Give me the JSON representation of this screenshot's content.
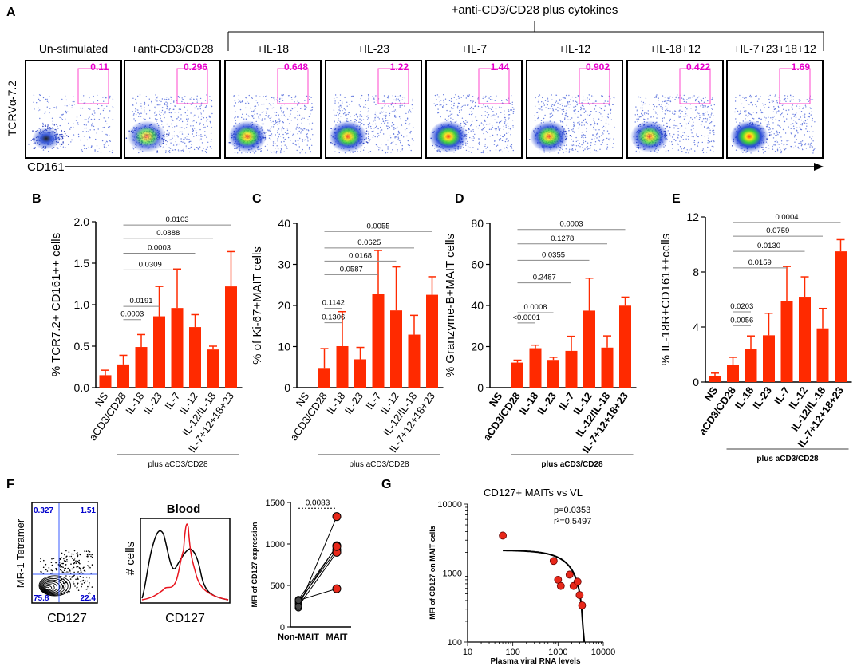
{
  "colors": {
    "bar": "#ff2a00",
    "gate": "#ff44cc",
    "gate_text": "#e600cc",
    "quad_text": "#0000cc",
    "quad_line": "#3a5bff",
    "hist_red": "#e8141e",
    "dot": "#e8281a"
  },
  "panelA": {
    "letter": "A",
    "super_label": "+anti-CD3/CD28 plus cytokines",
    "y_label": "TCRVα-7.2",
    "x_label": "CD161",
    "panels": [
      {
        "label": "Un-stimulated",
        "pct": "0.11"
      },
      {
        "label": "+anti-CD3/CD28",
        "pct": "0.296"
      },
      {
        "label": "+IL-18",
        "pct": "0.648"
      },
      {
        "label": "+IL-23",
        "pct": "1.22"
      },
      {
        "label": "+IL-7",
        "pct": "1.44"
      },
      {
        "label": "+IL-12",
        "pct": "0.902"
      },
      {
        "label": "+IL-18+12",
        "pct": "0.422"
      },
      {
        "label": "+IL-7+23+18+12",
        "pct": "1.69"
      }
    ]
  },
  "chart_data": [
    {
      "id": "B",
      "type": "bar",
      "ylabel": "% TCR7.2+ CD161++ cells",
      "ylim": [
        0,
        2.0
      ],
      "yticks": [
        0,
        0.5,
        1.0,
        1.5,
        2.0
      ],
      "ytick_labels": [
        "0.0",
        "0.5",
        "1.0",
        "1.5",
        "2.0"
      ],
      "categories": [
        "NS",
        "aCD3/CD28",
        "IL-18",
        "IL-23",
        "IL-7",
        "IL-12",
        "IL-12/IL-18",
        "IL-7+12+18+23"
      ],
      "values": [
        0.15,
        0.28,
        0.49,
        0.86,
        0.96,
        0.73,
        0.46,
        1.22
      ],
      "errors": [
        0.06,
        0.11,
        0.15,
        0.36,
        0.47,
        0.15,
        0.04,
        0.42
      ],
      "comparisons": [
        {
          "from": 1,
          "to": 2,
          "p": "0.0003",
          "y": 0.82
        },
        {
          "from": 1,
          "to": 3,
          "p": "0.0191",
          "y": 0.98
        },
        {
          "from": 1,
          "to": 4,
          "p": "0.0309",
          "y": 1.42
        },
        {
          "from": 1,
          "to": 5,
          "p": "0.0003",
          "y": 1.62
        },
        {
          "from": 1,
          "to": 6,
          "p": "0.0888",
          "y": 1.8
        },
        {
          "from": 1,
          "to": 7,
          "p": "0.0103",
          "y": 1.96
        }
      ],
      "footer": "plus aCD3/CD28",
      "footer_span": [
        1,
        7
      ],
      "footer_bold": false
    },
    {
      "id": "C",
      "type": "bar",
      "ylabel": "% of Ki-67+MAIT cells",
      "ylim": [
        0,
        40
      ],
      "yticks": [
        0,
        10,
        20,
        30,
        40
      ],
      "ytick_labels": [
        "0",
        "10",
        "20",
        "30",
        "40"
      ],
      "categories": [
        "NS",
        "aCD3/CD28",
        "IL-18",
        "IL-23",
        "IL-7",
        "IL-12",
        "IL-12/IL-18",
        "IL-7+12+18+23"
      ],
      "values": [
        0,
        4.6,
        10.1,
        6.9,
        22.8,
        18.8,
        12.9,
        22.6
      ],
      "errors": [
        0,
        4.9,
        8.4,
        2.9,
        10.6,
        10.6,
        4.7,
        4.4
      ],
      "comparisons": [
        {
          "from": 1,
          "to": 2,
          "p": "0.1306",
          "y": 15.8
        },
        {
          "from": 1,
          "to": 2,
          "p": "0.1142",
          "y": 19.3
        },
        {
          "from": 1,
          "to": 4,
          "p": "0.0587",
          "y": 27.5
        },
        {
          "from": 1,
          "to": 5,
          "p": "0.0168",
          "y": 30.8
        },
        {
          "from": 1,
          "to": 6,
          "p": "0.0625",
          "y": 34.0
        },
        {
          "from": 1,
          "to": 7,
          "p": "0.0055",
          "y": 38.0
        }
      ],
      "footer": "plus aCD3/CD28",
      "footer_span": [
        1,
        7
      ],
      "footer_bold": false
    },
    {
      "id": "D",
      "type": "bar",
      "ylabel": "% Granzyme-B+MAIT cells",
      "ylim": [
        0,
        80
      ],
      "yticks": [
        0,
        20,
        40,
        60,
        80
      ],
      "ytick_labels": [
        "0",
        "20",
        "40",
        "60",
        "80"
      ],
      "categories": [
        "NS",
        "aCD3/CD28",
        "IL-18",
        "IL-23",
        "IL-7",
        "IL-12",
        "IL-12/IL-18",
        "IL-7+12+18+23"
      ],
      "values": [
        0,
        12.2,
        19.2,
        13.5,
        17.9,
        37.5,
        19.5,
        39.9
      ],
      "errors": [
        0,
        1.2,
        1.5,
        1.3,
        7.1,
        15.8,
        5.7,
        4.2
      ],
      "comparisons": [
        {
          "from": 1,
          "to": 2,
          "p": "<0.0001",
          "y": 31.5
        },
        {
          "from": 1,
          "to": 3,
          "p": "0.0008",
          "y": 36.5
        },
        {
          "from": 1,
          "to": 4,
          "p": "0.2487",
          "y": 51.0
        },
        {
          "from": 1,
          "to": 5,
          "p": "0.0355",
          "y": 62.0
        },
        {
          "from": 1,
          "to": 6,
          "p": "0.1278",
          "y": 70.0
        },
        {
          "from": 1,
          "to": 7,
          "p": "0.0003",
          "y": 77.0
        }
      ],
      "footer": "plus aCD3/CD28",
      "footer_span": [
        1,
        7
      ],
      "footer_bold": true
    },
    {
      "id": "E",
      "type": "bar",
      "ylabel": "% IL-18R+CD161++cells",
      "ylim": [
        0,
        12
      ],
      "yticks": [
        0,
        4,
        8,
        12
      ],
      "ytick_labels": [
        "0",
        "4",
        "8",
        "12"
      ],
      "categories": [
        "NS",
        "aCD3/CD28",
        "IL-18",
        "IL-23",
        "IL-7",
        "IL-12",
        "IL-12/IL-18",
        "IL-7+12+18+23"
      ],
      "values": [
        0.45,
        1.25,
        2.4,
        3.4,
        5.9,
        6.2,
        3.9,
        9.5
      ],
      "errors": [
        0.2,
        0.55,
        0.95,
        1.6,
        2.5,
        1.45,
        1.45,
        0.85
      ],
      "comparisons": [
        {
          "from": 1,
          "to": 2,
          "p": "0.0056",
          "y": 4.1
        },
        {
          "from": 1,
          "to": 2,
          "p": "0.0203",
          "y": 5.1
        },
        {
          "from": 1,
          "to": 4,
          "p": "0.0159",
          "y": 8.3
        },
        {
          "from": 1,
          "to": 5,
          "p": "0.0130",
          "y": 9.5
        },
        {
          "from": 1,
          "to": 6,
          "p": "0.0759",
          "y": 10.6
        },
        {
          "from": 1,
          "to": 7,
          "p": "0.0004",
          "y": 11.6
        }
      ],
      "footer": "plus aCD3/CD28",
      "footer_span": [
        1,
        7
      ],
      "footer_bold": true
    },
    {
      "id": "F-paired",
      "type": "scatter",
      "ylabel": "MFI of CD127 expression",
      "ylim": [
        0,
        1500
      ],
      "yticks": [
        0,
        500,
        1000,
        1500
      ],
      "ytick_labels": [
        "0",
        "500",
        "1000",
        "1500"
      ],
      "categories": [
        "Non-MAIT",
        "MAIT"
      ],
      "pairs": [
        [
          230,
          1330
        ],
        [
          280,
          980
        ],
        [
          300,
          930
        ],
        [
          250,
          900
        ],
        [
          330,
          970
        ],
        [
          320,
          460
        ]
      ],
      "comparison": {
        "p": "0.0083",
        "y": 1430
      }
    },
    {
      "id": "G",
      "type": "scatter",
      "title": "CD127+ MAITs vs VL",
      "xlabel": "Plasma viral RNA levels",
      "ylabel": "MFI of CD127 on MAIT cells",
      "xlim": [
        10,
        10000
      ],
      "ylim": [
        100,
        10000
      ],
      "xscale": "log",
      "yscale": "log",
      "xtick_labels": [
        "10",
        "100",
        "1000",
        "10000"
      ],
      "ytick_labels": [
        "100",
        "1000",
        "10000"
      ],
      "points": [
        [
          60,
          3500
        ],
        [
          800,
          1500
        ],
        [
          1000,
          800
        ],
        [
          1150,
          650
        ],
        [
          1800,
          950
        ],
        [
          2200,
          650
        ],
        [
          2700,
          750
        ],
        [
          3000,
          480
        ],
        [
          3400,
          340
        ]
      ],
      "fit": {
        "a": 2150,
        "xmax": 3800
      },
      "p_text": "p=0.0353",
      "r2_text": "r²=0.5497"
    }
  ],
  "panelF": {
    "letter": "F",
    "quad": {
      "ylabel": "MR-1 Tetramer",
      "xlabel": "CD127",
      "ul": "0.327",
      "ur": "1.51",
      "ll": "75.8",
      "lr": "22.4"
    },
    "hist": {
      "title": "Blood",
      "ylabel": "# cells",
      "xlabel": "CD127"
    }
  },
  "panelG": {
    "letter": "G"
  },
  "letters": {
    "B": "B",
    "C": "C",
    "D": "D",
    "E": "E"
  }
}
